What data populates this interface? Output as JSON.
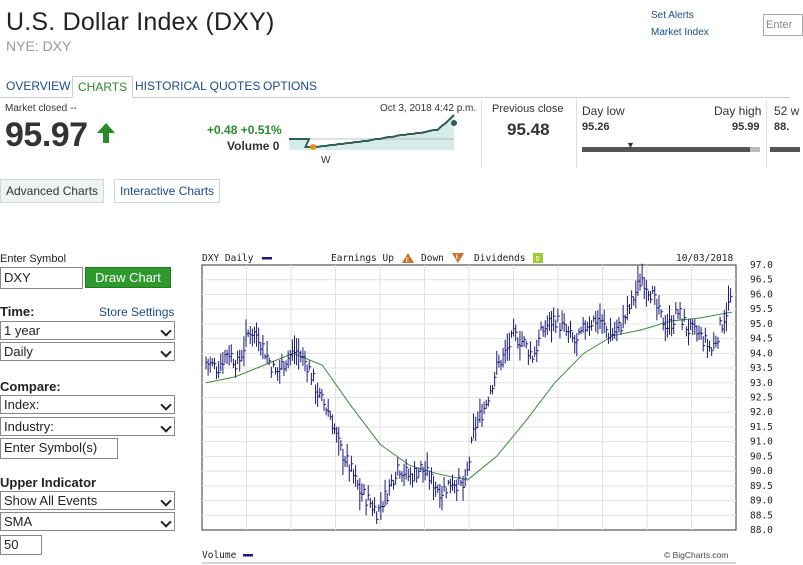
{
  "header": {
    "title": "U.S. Dollar Index (DXY)",
    "exchange_ticker": "NYE: DXY",
    "links": [
      "Set Alerts",
      "Market Index"
    ],
    "search_placeholder": "Enter"
  },
  "tabs": [
    {
      "label": "OVERVIEW",
      "active": false
    },
    {
      "label": "CHARTS",
      "active": true
    },
    {
      "label": "HISTORICAL QUOTES",
      "active": false
    },
    {
      "label": "OPTIONS",
      "active": false
    }
  ],
  "quote": {
    "status": "Market closed --",
    "price": "95.97",
    "change": "+0.48 +0.51%",
    "volume_label": "Volume 0",
    "timestamp": "Oct 3, 2018 4:42 p.m.",
    "spark_marker": "W",
    "previous_close_label": "Previous close",
    "previous_close": "95.48",
    "day_low_label": "Day low",
    "day_low": "95.26",
    "day_high_label": "Day high",
    "day_high": "95.99",
    "week52_label": "52 w",
    "week52_value": "88.",
    "day_range_position": 0.96,
    "colors": {
      "up": "#2a8a2a",
      "spark_fill": "#d6ece8",
      "spark_line": "#2f5f56"
    }
  },
  "chart_buttons": {
    "advanced": "Advanced Charts",
    "interactive": "Interactive Charts"
  },
  "form": {
    "enter_symbol_label": "Enter Symbol",
    "symbol_value": "DXY",
    "draw_chart_label": "Draw Chart",
    "time_label": "Time:",
    "store_settings_label": "Store Settings",
    "time_range": "1 year",
    "frequency": "Daily",
    "compare_label": "Compare:",
    "compare_index": "Index:",
    "compare_industry": "Industry:",
    "compare_symbols_placeholder": "Enter Symbol(s)",
    "upper_indicator_label": "Upper Indicator",
    "events": "Show All Events",
    "indicator": "SMA",
    "indicator_period": "50"
  },
  "chart_header": {
    "series_label": "DXY Daily",
    "earnings_label": "Earnings Up",
    "down_label": "Down",
    "dividends_label": "Dividends",
    "date": "10/03/2018",
    "volume_label": "Volume",
    "credit": "© BigCharts.com",
    "earnings_up_icon": "E",
    "earnings_down_icon": "E",
    "dividends_icon": "D"
  },
  "chart_data": {
    "type": "line",
    "title": "DXY Daily",
    "ylabel": "",
    "ylim": [
      88.0,
      97.0
    ],
    "y_ticks": [
      "97.0",
      "96.5",
      "96.0",
      "95.5",
      "95.0",
      "94.5",
      "94.0",
      "93.5",
      "93.0",
      "92.5",
      "92.0",
      "91.5",
      "91.0",
      "90.5",
      "90.0",
      "89.5",
      "89.0",
      "88.5",
      "88.0"
    ],
    "x_range": [
      "2017-10-03",
      "2018-10-03"
    ],
    "grid": true,
    "series": [
      {
        "name": "DXY Daily",
        "style": "ohlc-bars",
        "color": "#1a1a7a",
        "x": [
          0,
          8,
          15,
          22,
          30,
          36,
          42,
          48,
          55,
          62,
          70,
          78,
          85,
          92,
          100,
          106,
          112,
          118,
          125,
          132,
          140,
          148,
          155,
          162,
          170,
          178,
          185,
          192,
          200,
          206,
          212,
          218,
          225,
          232,
          240,
          248,
          255,
          262,
          270,
          278,
          285,
          292,
          300,
          306,
          312,
          318,
          325,
          332,
          340,
          348,
          355,
          362
        ],
        "values": [
          93.7,
          93.5,
          94.1,
          93.6,
          94.8,
          94.6,
          93.9,
          93.3,
          93.8,
          94.1,
          93.6,
          92.5,
          92.0,
          90.8,
          90.0,
          89.3,
          89.0,
          88.6,
          89.3,
          90.2,
          89.8,
          90.1,
          89.7,
          89.3,
          89.7,
          89.4,
          91.5,
          92.2,
          93.5,
          94.0,
          94.6,
          94.4,
          93.9,
          94.8,
          95.2,
          94.7,
          94.3,
          95.0,
          95.2,
          94.6,
          94.9,
          95.6,
          96.6,
          96.1,
          95.3,
          94.9,
          95.4,
          94.8,
          94.6,
          94.1,
          95.0,
          95.97
        ]
      },
      {
        "name": "",
        "style": "line",
        "color": "#3b8a3b",
        "x": [
          0,
          20,
          40,
          60,
          80,
          100,
          120,
          140,
          160,
          180,
          200,
          220,
          240,
          260,
          280,
          300,
          320,
          340,
          362
        ],
        "values": [
          93.0,
          93.2,
          93.6,
          94.0,
          93.6,
          92.2,
          90.9,
          90.2,
          89.9,
          89.7,
          90.5,
          91.7,
          93.0,
          94.0,
          94.6,
          94.8,
          95.1,
          95.2,
          95.4
        ]
      }
    ]
  }
}
